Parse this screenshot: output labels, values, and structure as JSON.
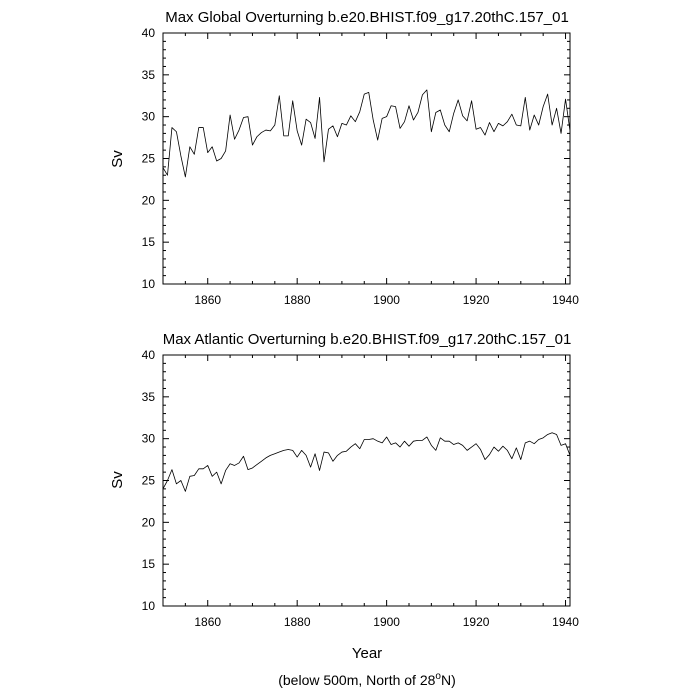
{
  "chart_data": [
    {
      "type": "line",
      "title": "Max Global Overturning b.e20.BHIST.f09_g17.20thC.157_01",
      "xlabel": "",
      "ylabel": "Sv",
      "xlim": [
        1850,
        1941
      ],
      "ylim": [
        10,
        40
      ],
      "xticks": [
        1860,
        1880,
        1900,
        1920,
        1940
      ],
      "yticks": [
        10,
        15,
        20,
        25,
        30,
        35,
        40
      ],
      "series": [
        {
          "name": "Max Global Overturning",
          "x": [
            1850,
            1851,
            1852,
            1853,
            1854,
            1855,
            1856,
            1857,
            1858,
            1859,
            1860,
            1861,
            1862,
            1863,
            1864,
            1865,
            1866,
            1867,
            1868,
            1869,
            1870,
            1871,
            1872,
            1873,
            1874,
            1875,
            1876,
            1877,
            1878,
            1879,
            1880,
            1881,
            1882,
            1883,
            1884,
            1885,
            1886,
            1887,
            1888,
            1889,
            1890,
            1891,
            1892,
            1893,
            1894,
            1895,
            1896,
            1897,
            1898,
            1899,
            1900,
            1901,
            1902,
            1903,
            1904,
            1905,
            1906,
            1907,
            1908,
            1909,
            1910,
            1911,
            1912,
            1913,
            1914,
            1915,
            1916,
            1917,
            1918,
            1919,
            1920,
            1921,
            1922,
            1923,
            1924,
            1925,
            1926,
            1927,
            1928,
            1929,
            1930,
            1931,
            1932,
            1933,
            1934,
            1935,
            1936,
            1937,
            1938,
            1939,
            1940,
            1941
          ],
          "values": [
            23.9,
            23.0,
            28.7,
            28.2,
            25.3,
            22.8,
            26.4,
            25.5,
            28.7,
            28.7,
            25.7,
            26.4,
            24.7,
            25.0,
            25.9,
            30.2,
            27.3,
            28.4,
            29.9,
            30.0,
            26.6,
            27.6,
            28.1,
            28.4,
            28.3,
            29.0,
            32.5,
            27.7,
            27.7,
            31.9,
            28.3,
            26.6,
            29.7,
            29.3,
            27.4,
            32.3,
            24.6,
            28.5,
            28.9,
            27.6,
            29.2,
            29.0,
            30.1,
            29.4,
            30.6,
            32.7,
            32.9,
            29.6,
            27.2,
            29.8,
            30.0,
            31.3,
            31.2,
            28.6,
            29.4,
            31.3,
            29.6,
            30.5,
            32.6,
            33.2,
            28.2,
            30.5,
            30.8,
            29.0,
            28.2,
            30.4,
            32.0,
            30.1,
            29.5,
            31.9,
            28.5,
            28.7,
            27.8,
            29.3,
            28.2,
            29.2,
            28.9,
            29.4,
            30.3,
            29.0,
            28.9,
            32.3,
            28.4,
            30.2,
            29.0,
            31.2,
            32.7,
            29.0,
            31.0,
            28.0,
            32.1,
            28.3
          ]
        }
      ]
    },
    {
      "type": "line",
      "title": "Max Atlantic Overturning b.e20.BHIST.f09_g17.20thC.157_01",
      "xlabel": "Year",
      "ylabel": "Sv",
      "xlim": [
        1850,
        1941
      ],
      "ylim": [
        10,
        40
      ],
      "xticks": [
        1860,
        1880,
        1900,
        1920,
        1940
      ],
      "yticks": [
        10,
        15,
        20,
        25,
        30,
        35,
        40
      ],
      "series": [
        {
          "name": "Max Atlantic Overturning",
          "x": [
            1850,
            1851,
            1852,
            1853,
            1854,
            1855,
            1856,
            1857,
            1858,
            1859,
            1860,
            1861,
            1862,
            1863,
            1864,
            1865,
            1866,
            1867,
            1868,
            1869,
            1870,
            1871,
            1872,
            1873,
            1874,
            1875,
            1876,
            1877,
            1878,
            1879,
            1880,
            1881,
            1882,
            1883,
            1884,
            1885,
            1886,
            1887,
            1888,
            1889,
            1890,
            1891,
            1892,
            1893,
            1894,
            1895,
            1896,
            1897,
            1898,
            1899,
            1900,
            1901,
            1902,
            1903,
            1904,
            1905,
            1906,
            1907,
            1908,
            1909,
            1910,
            1911,
            1912,
            1913,
            1914,
            1915,
            1916,
            1917,
            1918,
            1919,
            1920,
            1921,
            1922,
            1923,
            1924,
            1925,
            1926,
            1927,
            1928,
            1929,
            1930,
            1931,
            1932,
            1933,
            1934,
            1935,
            1936,
            1937,
            1938,
            1939,
            1940,
            1941
          ],
          "values": [
            24.0,
            25.0,
            26.3,
            24.6,
            25.0,
            23.7,
            25.5,
            25.6,
            26.4,
            26.4,
            26.8,
            25.5,
            26.0,
            24.6,
            26.2,
            27.0,
            26.8,
            27.1,
            27.9,
            26.3,
            26.5,
            26.9,
            27.3,
            27.7,
            28.0,
            28.2,
            28.4,
            28.6,
            28.7,
            28.6,
            27.8,
            28.6,
            28.0,
            26.6,
            28.2,
            26.2,
            28.4,
            28.3,
            27.3,
            28.0,
            28.4,
            28.5,
            29.0,
            29.4,
            28.8,
            29.9,
            29.9,
            30.0,
            29.7,
            29.5,
            30.2,
            29.3,
            29.5,
            29.0,
            29.7,
            29.1,
            29.7,
            29.8,
            29.8,
            30.2,
            29.2,
            28.6,
            30.1,
            29.7,
            29.7,
            29.3,
            29.5,
            29.2,
            28.6,
            29.0,
            29.4,
            28.7,
            27.5,
            28.1,
            29.0,
            28.5,
            29.1,
            28.6,
            27.6,
            28.9,
            27.5,
            29.5,
            29.7,
            29.4,
            29.9,
            30.1,
            30.5,
            30.7,
            30.5,
            29.2,
            29.4,
            28.0
          ]
        }
      ]
    }
  ],
  "footnote": {
    "prefix": "(below 500m, North of 28",
    "superscript": "o",
    "suffix": "N)"
  }
}
